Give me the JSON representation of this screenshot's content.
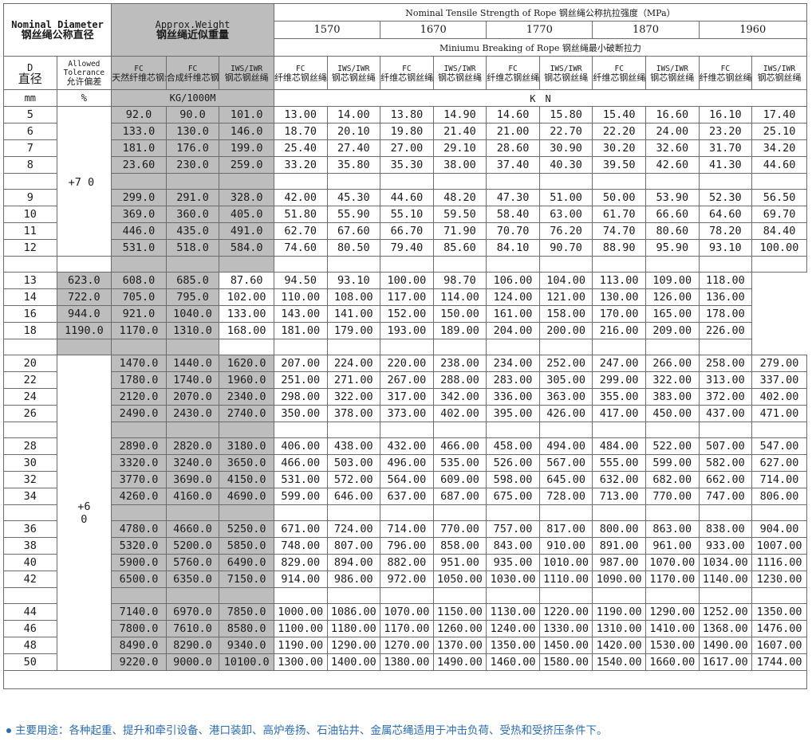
{
  "header": {
    "diameter_en": "Nominal Diameter",
    "diameter_cn": "钢丝绳公称直径",
    "weight_en": "Approx.Weight",
    "weight_cn": "钢丝绳近似重量",
    "strength_title": "Nominal Tensile Strength of Rope 钢丝绳公称抗拉强度（MPa）",
    "strength_grades": [
      "1570",
      "1670",
      "1770",
      "1870",
      "1960"
    ],
    "breaking_title": "Miniumu Breaking of Rope 钢丝绳最小破断拉力",
    "d_en": "D",
    "d_cn": "直径",
    "tol_en1": "Allowed",
    "tol_en2": "Tolerance",
    "tol_cn": "允许偏差",
    "weight_cols": [
      {
        "en": "FC",
        "cn": "天然纤维芯钢丝绳"
      },
      {
        "en": "FC",
        "cn": "合成纤维芯钢丝绳"
      },
      {
        "en": "IWS/IWR",
        "cn": "钢芯钢丝绳"
      }
    ],
    "break_cols": [
      {
        "en": "FC",
        "cn": "纤维芯钢丝绳"
      },
      {
        "en": "IWS/IWR",
        "cn": "钢芯钢丝绳"
      }
    ]
  },
  "units": {
    "d": "mm",
    "tol": "%",
    "weight": "KG/1000M",
    "force": "K　N"
  },
  "tolerances": [
    "+7 0",
    "+6 0"
  ],
  "groups": [
    [
      [
        "5",
        "92.0",
        "90.0",
        "101.0",
        "13.00",
        "14.00",
        "13.80",
        "14.90",
        "14.60",
        "15.80",
        "15.40",
        "16.60",
        "16.10",
        "17.40"
      ],
      [
        "6",
        "133.0",
        "130.0",
        "146.0",
        "18.70",
        "20.10",
        "19.80",
        "21.40",
        "21.00",
        "22.70",
        "22.20",
        "24.00",
        "23.20",
        "25.10"
      ],
      [
        "7",
        "181.0",
        "176.0",
        "199.0",
        "25.40",
        "27.40",
        "27.00",
        "29.10",
        "28.60",
        "30.90",
        "30.20",
        "32.60",
        "31.70",
        "34.20"
      ],
      [
        "8",
        "23.60",
        "230.0",
        "259.0",
        "33.20",
        "35.80",
        "35.30",
        "38.00",
        "37.40",
        "40.30",
        "39.50",
        "42.60",
        "41.30",
        "44.60"
      ]
    ],
    [
      [
        "9",
        "299.0",
        "291.0",
        "328.0",
        "42.00",
        "45.30",
        "44.60",
        "48.20",
        "47.30",
        "51.00",
        "50.00",
        "53.90",
        "52.30",
        "56.50"
      ],
      [
        "10",
        "369.0",
        "360.0",
        "405.0",
        "51.80",
        "55.90",
        "55.10",
        "59.50",
        "58.40",
        "63.00",
        "61.70",
        "66.60",
        "64.60",
        "69.70"
      ],
      [
        "11",
        "446.0",
        "435.0",
        "491.0",
        "62.70",
        "67.60",
        "66.70",
        "71.90",
        "70.70",
        "76.20",
        "74.70",
        "80.60",
        "78.20",
        "84.40"
      ],
      [
        "12",
        "531.0",
        "518.0",
        "584.0",
        "74.60",
        "80.50",
        "79.40",
        "85.60",
        "84.10",
        "90.70",
        "88.90",
        "95.90",
        "93.10",
        "100.00"
      ]
    ],
    [
      [
        "13",
        "623.0",
        "608.0",
        "685.0",
        "87.60",
        "94.50",
        "93.10",
        "100.00",
        "98.70",
        "106.00",
        "104.00",
        "113.00",
        "109.00",
        "118.00"
      ],
      [
        "14",
        "722.0",
        "705.0",
        "795.0",
        "102.00",
        "110.00",
        "108.00",
        "117.00",
        "114.00",
        "124.00",
        "121.00",
        "130.00",
        "126.00",
        "136.00"
      ],
      [
        "16",
        "944.0",
        "921.0",
        "1040.0",
        "133.00",
        "143.00",
        "141.00",
        "152.00",
        "150.00",
        "161.00",
        "158.00",
        "170.00",
        "165.00",
        "178.00"
      ],
      [
        "18",
        "1190.0",
        "1170.0",
        "1310.0",
        "168.00",
        "181.00",
        "179.00",
        "193.00",
        "189.00",
        "204.00",
        "200.00",
        "216.00",
        "209.00",
        "226.00"
      ]
    ],
    [
      [
        "20",
        "1470.0",
        "1440.0",
        "1620.0",
        "207.00",
        "224.00",
        "220.00",
        "238.00",
        "234.00",
        "252.00",
        "247.00",
        "266.00",
        "258.00",
        "279.00"
      ],
      [
        "22",
        "1780.0",
        "1740.0",
        "1960.0",
        "251.00",
        "271.00",
        "267.00",
        "288.00",
        "283.00",
        "305.00",
        "299.00",
        "322.00",
        "313.00",
        "337.00"
      ],
      [
        "24",
        "2120.0",
        "2070.0",
        "2340.0",
        "298.00",
        "322.00",
        "317.00",
        "342.00",
        "336.00",
        "363.00",
        "355.00",
        "383.00",
        "372.00",
        "402.00"
      ],
      [
        "26",
        "2490.0",
        "2430.0",
        "2740.0",
        "350.00",
        "378.00",
        "373.00",
        "402.00",
        "395.00",
        "426.00",
        "417.00",
        "450.00",
        "437.00",
        "471.00"
      ]
    ],
    [
      [
        "28",
        "2890.0",
        "2820.0",
        "3180.0",
        "406.00",
        "438.00",
        "432.00",
        "466.00",
        "458.00",
        "494.00",
        "484.00",
        "522.00",
        "507.00",
        "547.00"
      ],
      [
        "30",
        "3320.0",
        "3240.0",
        "3650.0",
        "466.00",
        "503.00",
        "496.00",
        "535.00",
        "526.00",
        "567.00",
        "555.00",
        "599.00",
        "582.00",
        "627.00"
      ],
      [
        "32",
        "3770.0",
        "3690.0",
        "4150.0",
        "531.00",
        "572.00",
        "564.00",
        "609.00",
        "598.00",
        "645.00",
        "632.00",
        "682.00",
        "662.00",
        "714.00"
      ],
      [
        "34",
        "4260.0",
        "4160.0",
        "4690.0",
        "599.00",
        "646.00",
        "637.00",
        "687.00",
        "675.00",
        "728.00",
        "713.00",
        "770.00",
        "747.00",
        "806.00"
      ]
    ],
    [
      [
        "36",
        "4780.0",
        "4660.0",
        "5250.0",
        "671.00",
        "724.00",
        "714.00",
        "770.00",
        "757.00",
        "817.00",
        "800.00",
        "863.00",
        "838.00",
        "904.00"
      ],
      [
        "38",
        "5320.0",
        "5200.0",
        "5850.0",
        "748.00",
        "807.00",
        "796.00",
        "858.00",
        "843.00",
        "910.00",
        "891.00",
        "961.00",
        "933.00",
        "1007.00"
      ],
      [
        "40",
        "5900.0",
        "5760.0",
        "6490.0",
        "829.00",
        "894.00",
        "882.00",
        "951.00",
        "935.00",
        "1010.00",
        "987.00",
        "1070.00",
        "1034.00",
        "1116.00"
      ],
      [
        "42",
        "6500.0",
        "6350.0",
        "7150.0",
        "914.00",
        "986.00",
        "972.00",
        "1050.00",
        "1030.00",
        "1110.00",
        "1090.00",
        "1170.00",
        "1140.00",
        "1230.00"
      ]
    ],
    [
      [
        "44",
        "7140.0",
        "6970.0",
        "7850.0",
        "1000.00",
        "1086.00",
        "1070.00",
        "1150.00",
        "1130.00",
        "1220.00",
        "1190.00",
        "1290.00",
        "1252.00",
        "1350.00"
      ],
      [
        "46",
        "7800.0",
        "7610.0",
        "8580.0",
        "1100.00",
        "1180.00",
        "1170.00",
        "1260.00",
        "1240.00",
        "1330.00",
        "1310.00",
        "1410.00",
        "1368.00",
        "1476.00"
      ],
      [
        "48",
        "8490.0",
        "8290.0",
        "9340.0",
        "1190.00",
        "1290.00",
        "1270.00",
        "1370.00",
        "1350.00",
        "1450.00",
        "1420.00",
        "1530.00",
        "1490.00",
        "1607.00"
      ],
      [
        "50",
        "9220.0",
        "9000.0",
        "10100.0",
        "1300.00",
        "1400.00",
        "1380.00",
        "1490.00",
        "1460.00",
        "1580.00",
        "1540.00",
        "1660.00",
        "1617.00",
        "1744.00"
      ]
    ]
  ],
  "note": "主要用途：各种起重、提升和牵引设备、港口装卸、高炉卷扬、石油钻井、金属芯绳适用于冲击负荷、受热和受挤压条件下。"
}
